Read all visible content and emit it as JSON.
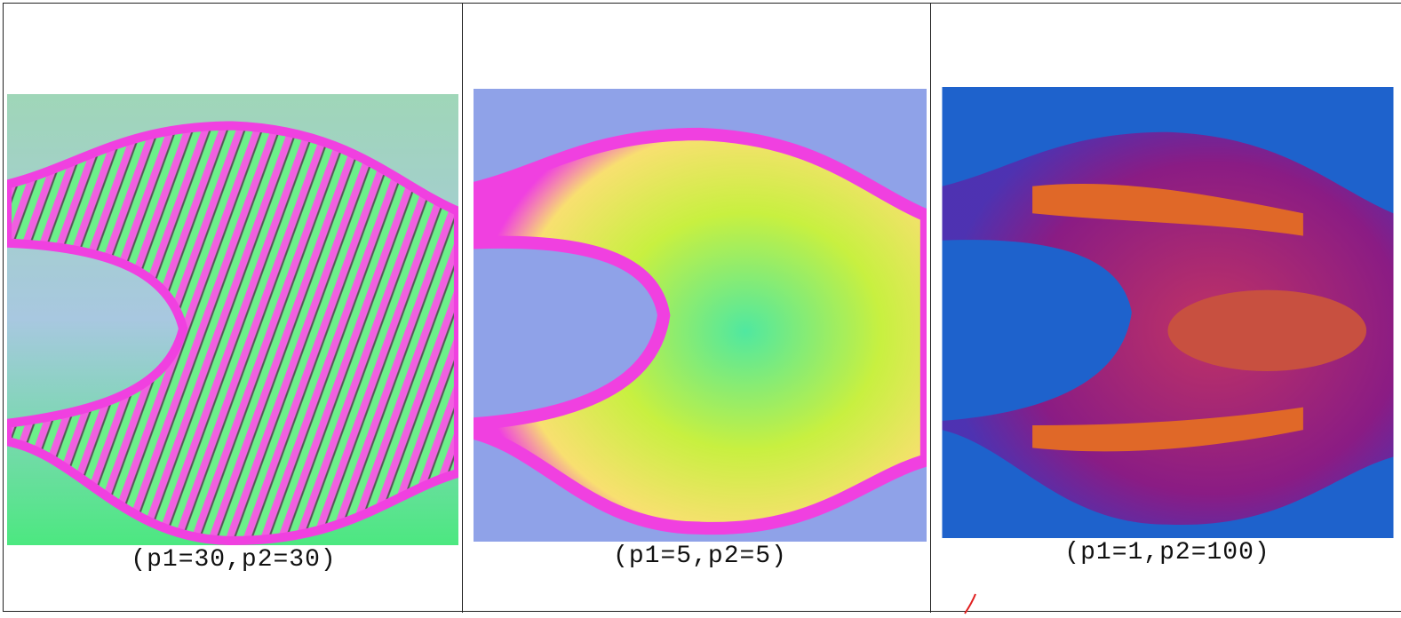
{
  "table": {
    "cells": [
      {
        "caption": "(p1=30,p2=30)"
      },
      {
        "caption": "(p1=5,p2=5)"
      },
      {
        "caption": "(p1=1,p2=100)"
      }
    ]
  }
}
